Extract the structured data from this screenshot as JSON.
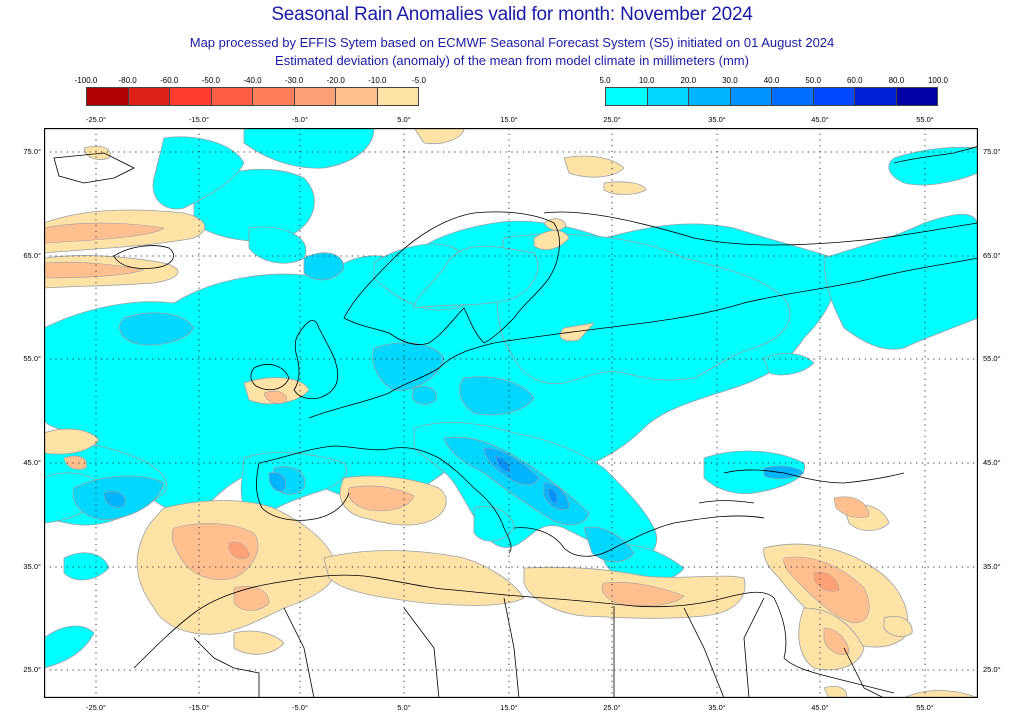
{
  "header": {
    "title": "Seasonal Rain Anomalies valid for month: November 2024",
    "subtitle_1": "Map processed by EFFIS Sytem based on ECMWF Seasonal Forecast System (S5) initiated on 01 August 2024",
    "subtitle_2": "Estimated deviation (anomaly) of the mean from model climate in millimeters (mm)"
  },
  "legend_negative": {
    "labels": [
      "-100.0",
      "-80.0",
      "-60.0",
      "-50.0",
      "-40.0",
      "-30.0",
      "-20.0",
      "-10.0",
      "-5.0"
    ],
    "colors": [
      "#b00000",
      "#de2118",
      "#ff3c2e",
      "#ff5e44",
      "#ff7f5a",
      "#ffa176",
      "#ffbf8e",
      "#ffe2a6"
    ]
  },
  "legend_positive": {
    "labels": [
      "5.0",
      "10.0",
      "20.0",
      "30.0",
      "40.0",
      "50.0",
      "60.0",
      "80.0",
      "100.0"
    ],
    "colors": [
      "#00ffff",
      "#00d7ff",
      "#00b4ff",
      "#0092ff",
      "#006eff",
      "#0048ff",
      "#0020d8",
      "#0000a8"
    ]
  },
  "axes": {
    "lon_ticks_top": [
      "-25.0°",
      "-15.0°",
      "-5.0°",
      "5.0°",
      "15.0°",
      "25.0°",
      "35.0°",
      "45.0°",
      "55.0°"
    ],
    "lon_ticks_bottom": [
      "-25.0°",
      "-15.0°",
      "-5.0°",
      "5.0°",
      "15.0°",
      "25.0°",
      "35.0°",
      "45.0°",
      "55.0°"
    ],
    "lat_ticks_left": [
      "75.0°",
      "65.0°",
      "55.0°",
      "45.0°",
      "35.0°",
      "25.0°"
    ],
    "lat_ticks_right": [
      "75.0°",
      "65.0°",
      "55.0°",
      "45.0°",
      "35.0°",
      "25.0°"
    ]
  },
  "map": {
    "region": "Europe, North Africa, Middle East",
    "lon_range": [
      -30,
      60
    ],
    "lat_range": [
      22.3,
      77.3
    ],
    "colors": {
      "pos_5_10": "#00ffff",
      "pos_10_20": "#00d7ff",
      "pos_20_30": "#00b4ff",
      "pos_30_40": "#0092ff",
      "neg_5_10": "#ffe2a6",
      "neg_10_20": "#ffbf8e",
      "neg_20_30": "#ffa176",
      "contour": "#9aa0a6",
      "coast": "#000000",
      "grid": "#333333"
    }
  }
}
